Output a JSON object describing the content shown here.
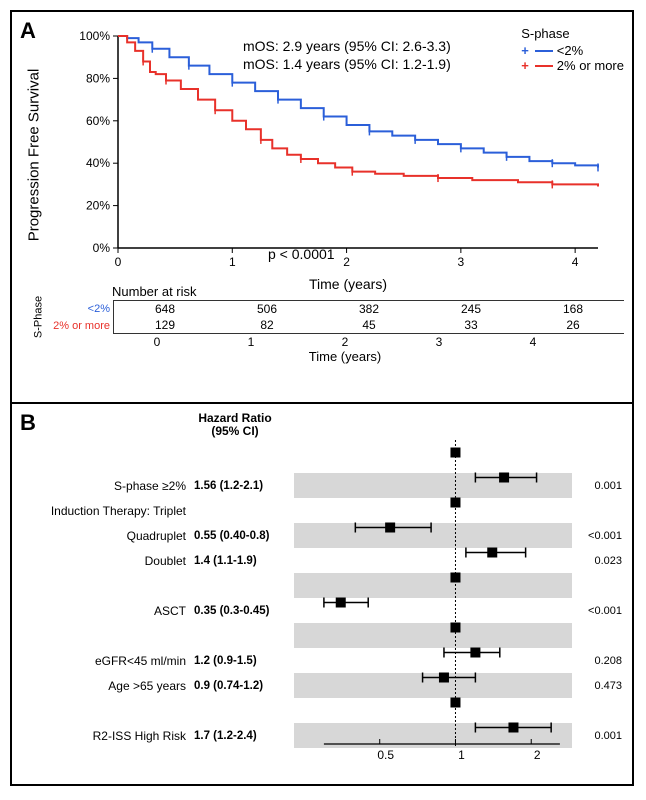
{
  "panelA": {
    "label": "A",
    "ylabel": "Progression Free Survival",
    "xlabel": "Time (years)",
    "annot_line1": "mOS: 2.9 years (95% CI: 2.6-3.3)",
    "annot_line2": "mOS: 1.4 years (95% CI: 1.2-1.9)",
    "pvalue": "p < 0.0001",
    "y_ticks": [
      "0%",
      "20%",
      "40%",
      "60%",
      "80%",
      "100%"
    ],
    "x_ticks": [
      "0",
      "1",
      "2",
      "3",
      "4"
    ],
    "ylim": [
      0,
      100
    ],
    "xlim": [
      0,
      4.2
    ],
    "legend_title": "S-phase",
    "group1": {
      "name": "<2%",
      "color": "#2b5fd9"
    },
    "group2": {
      "name": "2% or more",
      "color": "#e8312a"
    },
    "curve1_points": [
      [
        0,
        100
      ],
      [
        0.08,
        99
      ],
      [
        0.18,
        97
      ],
      [
        0.3,
        94
      ],
      [
        0.45,
        90
      ],
      [
        0.62,
        86
      ],
      [
        0.8,
        82
      ],
      [
        1.0,
        78
      ],
      [
        1.2,
        74
      ],
      [
        1.4,
        70
      ],
      [
        1.6,
        66
      ],
      [
        1.8,
        62
      ],
      [
        2.0,
        58
      ],
      [
        2.2,
        55
      ],
      [
        2.4,
        53
      ],
      [
        2.6,
        51
      ],
      [
        2.8,
        49
      ],
      [
        3.0,
        47
      ],
      [
        3.2,
        45
      ],
      [
        3.4,
        43
      ],
      [
        3.6,
        41
      ],
      [
        3.8,
        40
      ],
      [
        4.0,
        39
      ],
      [
        4.2,
        38
      ]
    ],
    "curve2_points": [
      [
        0,
        100
      ],
      [
        0.08,
        97
      ],
      [
        0.15,
        93
      ],
      [
        0.22,
        88
      ],
      [
        0.28,
        83
      ],
      [
        0.33,
        82
      ],
      [
        0.42,
        79
      ],
      [
        0.55,
        75
      ],
      [
        0.7,
        70
      ],
      [
        0.85,
        65
      ],
      [
        1.0,
        60
      ],
      [
        1.12,
        56
      ],
      [
        1.25,
        51
      ],
      [
        1.35,
        47
      ],
      [
        1.48,
        44
      ],
      [
        1.6,
        42
      ],
      [
        1.75,
        40
      ],
      [
        1.9,
        38
      ],
      [
        2.05,
        36
      ],
      [
        2.25,
        35
      ],
      [
        2.5,
        34
      ],
      [
        2.8,
        33
      ],
      [
        3.1,
        32
      ],
      [
        3.5,
        31
      ],
      [
        3.8,
        30
      ],
      [
        4.2,
        29
      ]
    ],
    "plot_bg": "#ffffff",
    "axis_color": "#000000",
    "risk_table": {
      "header": "Number at risk",
      "left_header": "S-Phase",
      "xlabel": "Time (years)",
      "x_vals": [
        "0",
        "1",
        "2",
        "3",
        "4"
      ],
      "rows": [
        {
          "label": "<2%",
          "color": "#2b5fd9",
          "vals": [
            "648",
            "506",
            "382",
            "245",
            "168"
          ]
        },
        {
          "label": "2% or more",
          "color": "#e8312a",
          "vals": [
            "129",
            "82",
            "45",
            "33",
            "26"
          ]
        }
      ]
    }
  },
  "panelB": {
    "label": "B",
    "header_line1": "Hazard Ratio",
    "header_line2": "(95% CI)",
    "x_ticks": [
      0.5,
      1,
      2
    ],
    "x_range_log": [
      0.22,
      2.8
    ],
    "ref_line_x": 1,
    "point_color": "#000000",
    "shade_color": "#d7d7d7",
    "rows": [
      {
        "label": "",
        "hr": "",
        "est": 1.0,
        "lo": null,
        "hi": null,
        "p": "",
        "shaded": false,
        "header_only": true
      },
      {
        "label": "S-phase ≥2%",
        "hr": "1.56 (1.2-2.1)",
        "est": 1.56,
        "lo": 1.2,
        "hi": 2.1,
        "p": "0.001",
        "shaded": true
      },
      {
        "label": "Induction Therapy: Triplet",
        "hr": "",
        "est": 1.0,
        "lo": null,
        "hi": null,
        "p": "",
        "shaded": false,
        "header_only": true
      },
      {
        "label": "Quadruplet",
        "hr": "0.55 (0.40-0.8)",
        "est": 0.55,
        "lo": 0.4,
        "hi": 0.8,
        "p": "<0.001",
        "shaded": true
      },
      {
        "label": "Doublet",
        "hr": "1.4 (1.1-1.9)",
        "est": 1.4,
        "lo": 1.1,
        "hi": 1.9,
        "p": "0.023",
        "shaded": false
      },
      {
        "label": "",
        "hr": "",
        "est": 1.0,
        "lo": null,
        "hi": null,
        "p": "",
        "shaded": true,
        "header_only": true
      },
      {
        "label": "ASCT",
        "hr": "0.35 (0.3-0.45)",
        "est": 0.35,
        "lo": 0.3,
        "hi": 0.45,
        "p": "<0.001",
        "shaded": false
      },
      {
        "label": "",
        "hr": "",
        "est": 1.0,
        "lo": null,
        "hi": null,
        "p": "",
        "shaded": true,
        "header_only": true
      },
      {
        "label": "eGFR<45 ml/min",
        "hr": "1.2 (0.9-1.5)",
        "est": 1.2,
        "lo": 0.9,
        "hi": 1.5,
        "p": "0.208",
        "shaded": false
      },
      {
        "label": "Age >65 years",
        "hr": "0.9 (0.74-1.2)",
        "est": 0.9,
        "lo": 0.74,
        "hi": 1.2,
        "p": "0.473",
        "shaded": true
      },
      {
        "label": "",
        "hr": "",
        "est": 1.0,
        "lo": null,
        "hi": null,
        "p": "",
        "shaded": false,
        "header_only": true
      },
      {
        "label": "R2-ISS High Risk",
        "hr": "1.7 (1.2-2.4)",
        "est": 1.7,
        "lo": 1.2,
        "hi": 2.4,
        "p": "0.001",
        "shaded": true
      }
    ]
  }
}
